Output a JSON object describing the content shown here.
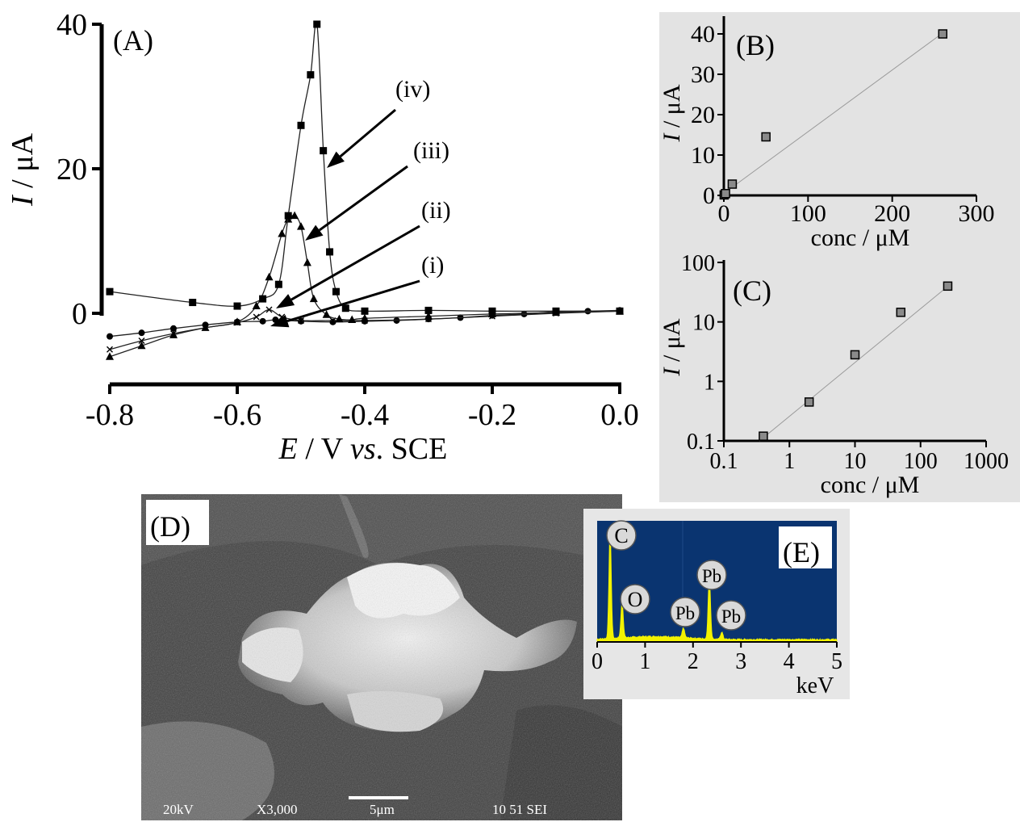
{
  "chart_data": [
    {
      "panel": "(A)",
      "type": "line",
      "xlabel_main": "E",
      "xlabel_unit": " / V ",
      "xlabel_vs": "vs",
      "xlabel_ref": ". SCE",
      "ylabel_main": "I",
      "ylabel_unit": " / μA",
      "xlim": [
        -0.8,
        0.0
      ],
      "ylim": [
        -6,
        40
      ],
      "xticks": [
        -0.8,
        -0.6,
        -0.4,
        -0.2,
        0.0
      ],
      "xticklabels": [
        "-0.8",
        "-0.6",
        "-0.4",
        "-0.2",
        "0.0"
      ],
      "yticks": [
        0,
        20,
        40
      ],
      "yticklabels": [
        "0",
        "20",
        "40"
      ],
      "series": [
        {
          "name": "(i)",
          "marker": "circle",
          "x": [
            -0.8,
            -0.75,
            -0.7,
            -0.65,
            -0.6,
            -0.56,
            -0.54,
            -0.5,
            -0.45,
            -0.4,
            -0.35,
            -0.3,
            -0.25,
            -0.2,
            -0.15,
            -0.1,
            -0.05,
            0.0
          ],
          "y": [
            -3.2,
            -2.7,
            -2.1,
            -1.6,
            -1.2,
            -1.1,
            -0.9,
            -1.1,
            -1.2,
            -1.1,
            -1.0,
            -0.8,
            -0.6,
            -0.3,
            -0.1,
            0.2,
            0.3,
            0.4
          ]
        },
        {
          "name": "(ii)",
          "marker": "cross",
          "x": [
            -0.8,
            -0.75,
            -0.7,
            -0.65,
            -0.6,
            -0.57,
            -0.55,
            -0.53,
            -0.5,
            -0.45,
            -0.4,
            -0.3,
            -0.2,
            -0.1,
            0.0
          ],
          "y": [
            -5.0,
            -3.8,
            -2.8,
            -2.0,
            -1.3,
            -0.5,
            0.5,
            -0.5,
            -1.0,
            -1.0,
            -1.0,
            -0.8,
            -0.4,
            0.0,
            0.3
          ]
        },
        {
          "name": "(iii)",
          "marker": "triangle",
          "x": [
            -0.8,
            -0.75,
            -0.7,
            -0.65,
            -0.6,
            -0.57,
            -0.55,
            -0.53,
            -0.52,
            -0.51,
            -0.5,
            -0.49,
            -0.48,
            -0.46,
            -0.44,
            -0.42,
            -0.4,
            -0.3,
            -0.2,
            -0.1,
            0.0
          ],
          "y": [
            -6.0,
            -4.5,
            -3.0,
            -2.0,
            -1.2,
            1.0,
            5.0,
            11.0,
            13.0,
            13.5,
            12.0,
            7.0,
            2.0,
            -0.2,
            -0.8,
            -0.9,
            -0.7,
            -0.4,
            -0.1,
            0.1,
            0.3
          ]
        },
        {
          "name": "(iv)",
          "marker": "square",
          "x": [
            -0.8,
            -0.67,
            -0.6,
            -0.56,
            -0.535,
            -0.52,
            -0.5,
            -0.485,
            -0.475,
            -0.465,
            -0.455,
            -0.445,
            -0.43,
            -0.4,
            -0.3,
            -0.2,
            -0.1,
            0.0
          ],
          "y": [
            3.0,
            1.5,
            1.0,
            2.0,
            4.0,
            13.5,
            26.0,
            33.0,
            40.0,
            22.5,
            8.5,
            3.0,
            0.7,
            0.3,
            0.4,
            0.3,
            0.3,
            0.3
          ]
        }
      ],
      "annotations": [
        "(i)",
        "(ii)",
        "(iii)",
        "(iv)"
      ]
    },
    {
      "panel": "(B)",
      "type": "scatter",
      "xlabel": "conc / μM",
      "ylabel_main": "I",
      "ylabel_unit": " / μA",
      "xlim": [
        0,
        300
      ],
      "ylim": [
        0,
        42
      ],
      "xticks": [
        0,
        100,
        200,
        300
      ],
      "xticklabels": [
        "0",
        "100",
        "200",
        "300"
      ],
      "yticks": [
        0,
        10,
        20,
        30,
        40
      ],
      "yticklabels": [
        "0",
        "10",
        "20",
        "30",
        "40"
      ],
      "x": [
        0.4,
        2,
        10,
        50,
        260
      ],
      "y": [
        0.12,
        0.45,
        2.8,
        14.5,
        40.0
      ],
      "fit": {
        "x": [
          0,
          265
        ],
        "y": [
          0.5,
          41.0
        ]
      }
    },
    {
      "panel": "(C)",
      "type": "scatter",
      "scale": "log-log",
      "xlabel": "conc / μM",
      "ylabel_main": "I",
      "ylabel_unit": " / μA",
      "xlim": [
        0.1,
        1000
      ],
      "ylim": [
        0.1,
        100
      ],
      "xticks": [
        0.1,
        1,
        10,
        100,
        1000
      ],
      "xticklabels": [
        "0.1",
        "1",
        "10",
        "100",
        "1000"
      ],
      "yticks": [
        0.1,
        1,
        10,
        100
      ],
      "yticklabels": [
        "0.1",
        "1",
        "10",
        "100"
      ],
      "x": [
        0.4,
        2,
        10,
        50,
        260
      ],
      "y": [
        0.12,
        0.45,
        2.8,
        14.5,
        40.0
      ],
      "fit": {
        "x": [
          0.35,
          300
        ],
        "y": [
          0.1,
          45.0
        ]
      }
    },
    {
      "panel": "(E)",
      "type": "line",
      "xlabel": "keV",
      "xlim": [
        0,
        5
      ],
      "xticks": [
        0,
        1,
        2,
        3,
        4,
        5
      ],
      "xticklabels": [
        "0",
        "1",
        "2",
        "3",
        "4",
        "5"
      ],
      "peaks": [
        {
          "label": "C",
          "x": 0.27,
          "height": 0.92
        },
        {
          "label": "O",
          "x": 0.52,
          "height": 0.3
        },
        {
          "label": "Pb",
          "x": 1.8,
          "height": 0.08
        },
        {
          "label": "Pb",
          "x": 2.34,
          "height": 0.52
        },
        {
          "label": "Pb",
          "x": 2.6,
          "height": 0.06
        }
      ],
      "background_color": "#0a3470",
      "spectrum_color": "#f2f200"
    }
  ],
  "sem_image": {
    "panel": "(D)",
    "caption_items": [
      "20kV",
      "X3,000",
      "5μm",
      "10 51 SEI"
    ]
  }
}
